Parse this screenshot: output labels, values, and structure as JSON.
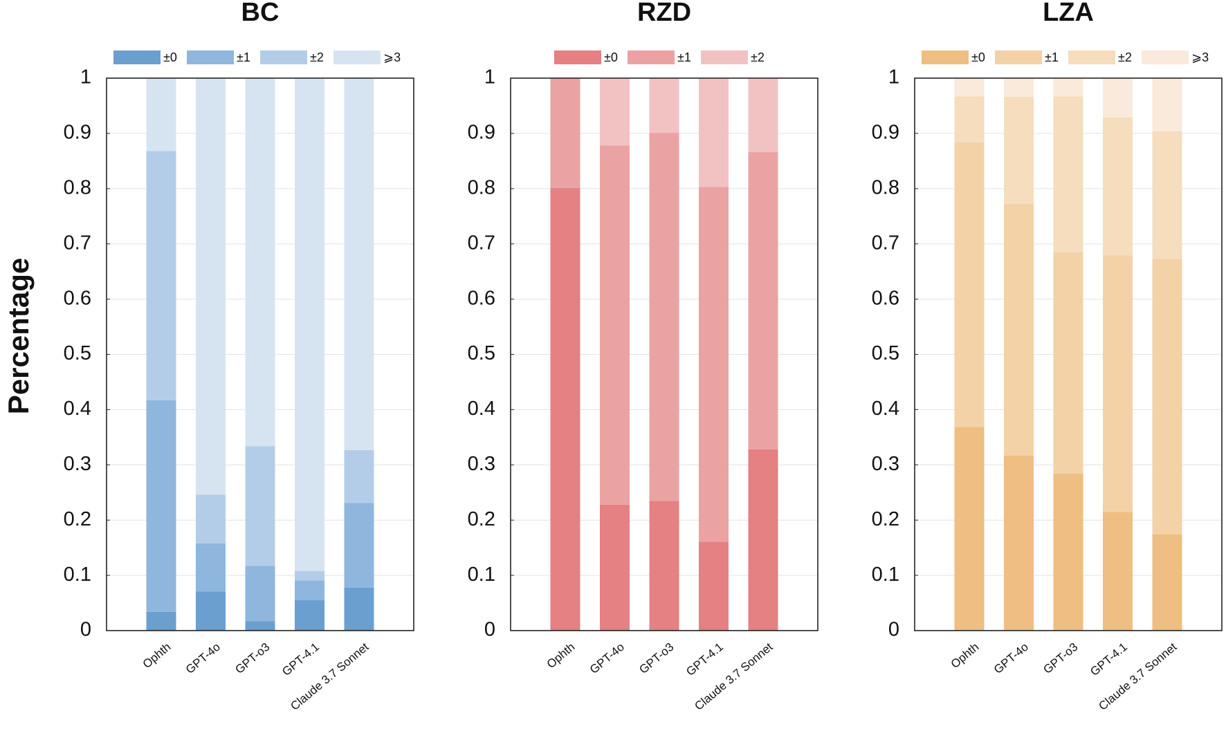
{
  "chart_data": [
    {
      "type": "bar",
      "stacked": true,
      "title": "BC",
      "y_label": "Percentage",
      "grid": true,
      "categories": [
        "Ophth",
        "GPT-4o",
        "GPT-o3",
        "GPT-4.1",
        "Claude 3.7 Sonnet"
      ],
      "ylim": [
        0,
        1
      ],
      "yticks": [
        0,
        0.1,
        0.2,
        0.3,
        0.4,
        0.5,
        0.6,
        0.7,
        0.8,
        0.9,
        1
      ],
      "series": [
        {
          "name": "±0",
          "color": "#6a9fd0",
          "values": [
            0.034,
            0.071,
            0.017,
            0.055,
            0.078
          ]
        },
        {
          "name": "±1",
          "color": "#8fb6dd",
          "values": [
            0.383,
            0.087,
            0.1,
            0.036,
            0.153
          ]
        },
        {
          "name": "±2",
          "color": "#b3cde8",
          "values": [
            0.451,
            0.088,
            0.217,
            0.017,
            0.096
          ]
        },
        {
          "name": "⩾3",
          "color": "#d6e4f2",
          "values": [
            0.132,
            0.754,
            0.666,
            0.892,
            0.673
          ]
        }
      ]
    },
    {
      "type": "bar",
      "stacked": true,
      "title": "RZD",
      "grid": true,
      "categories": [
        "Ophth",
        "GPT-4o",
        "GPT-o3",
        "GPT-4.1",
        "Claude 3.7 Sonnet"
      ],
      "ylim": [
        0,
        1
      ],
      "yticks": [
        0,
        0.1,
        0.2,
        0.3,
        0.4,
        0.5,
        0.6,
        0.7,
        0.8,
        0.9,
        1
      ],
      "series": [
        {
          "name": "±0",
          "color": "#e58083",
          "values": [
            0.801,
            0.228,
            0.235,
            0.161,
            0.328
          ]
        },
        {
          "name": "±1",
          "color": "#eba2a3",
          "values": [
            0.199,
            0.65,
            0.666,
            0.642,
            0.538
          ]
        },
        {
          "name": "±2",
          "color": "#f2c2c2",
          "values": [
            0,
            0.122,
            0.099,
            0.197,
            0.134
          ]
        }
      ]
    },
    {
      "type": "bar",
      "stacked": true,
      "title": "LZA",
      "grid": true,
      "categories": [
        "Ophth",
        "GPT-4o",
        "GPT-o3",
        "GPT-4.1",
        "Claude 3.7 Sonnet"
      ],
      "ylim": [
        0,
        1
      ],
      "yticks": [
        0,
        0.1,
        0.2,
        0.3,
        0.4,
        0.5,
        0.6,
        0.7,
        0.8,
        0.9,
        1
      ],
      "series": [
        {
          "name": "±0",
          "color": "#eebe82",
          "values": [
            0.368,
            0.317,
            0.284,
            0.215,
            0.174
          ]
        },
        {
          "name": "±1",
          "color": "#f2d2a6",
          "values": [
            0.516,
            0.455,
            0.401,
            0.464,
            0.499
          ]
        },
        {
          "name": "±2",
          "color": "#f5ddbd",
          "values": [
            0.083,
            0.194,
            0.282,
            0.25,
            0.231
          ]
        },
        {
          "name": "⩾3",
          "color": "#faeadb",
          "values": [
            0.033,
            0.034,
            0.033,
            0.071,
            0.096
          ]
        }
      ]
    }
  ]
}
